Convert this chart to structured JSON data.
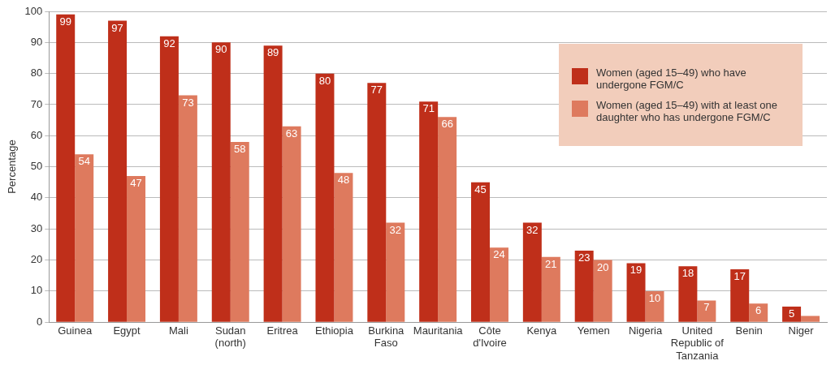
{
  "chart_data": {
    "type": "bar",
    "ylabel": "Percentage",
    "categories": [
      "Guinea",
      "Egypt",
      "Mali",
      "Sudan (north)",
      "Eritrea",
      "Ethiopia",
      "Burkina Faso",
      "Mauritania",
      "Côte d'Ivoire",
      "Kenya",
      "Yemen",
      "Nigeria",
      "United Republic of Tanzania",
      "Benin",
      "Niger"
    ],
    "series": [
      {
        "name": "Women (aged 15–49) who have undergone FGM/C",
        "color": "#bf2f1a",
        "values": [
          99,
          97,
          92,
          90,
          89,
          80,
          77,
          71,
          45,
          32,
          23,
          19,
          18,
          17,
          5
        ],
        "value_labels": [
          "99",
          "97",
          "92",
          "90",
          "89",
          "80",
          "77",
          "71",
          "45",
          "32",
          "23",
          "19",
          "18",
          "17",
          "5"
        ]
      },
      {
        "name": "Women (aged 15–49) with at least one daughter who has undergone FGM/C",
        "color": "#de7a5e",
        "values": [
          54,
          47,
          73,
          58,
          63,
          48,
          32,
          66,
          24,
          21,
          20,
          10,
          7,
          6,
          2
        ],
        "value_labels": [
          "54",
          "47",
          "73",
          "58",
          "63",
          "48",
          "32",
          "66",
          "24",
          "21",
          "20",
          "10",
          "7",
          "6",
          null
        ]
      }
    ],
    "ylim": [
      0,
      100
    ],
    "yticks": [
      0,
      10,
      20,
      30,
      40,
      50,
      60,
      70,
      80,
      90,
      100
    ],
    "grid": "y",
    "legend": "top right"
  }
}
